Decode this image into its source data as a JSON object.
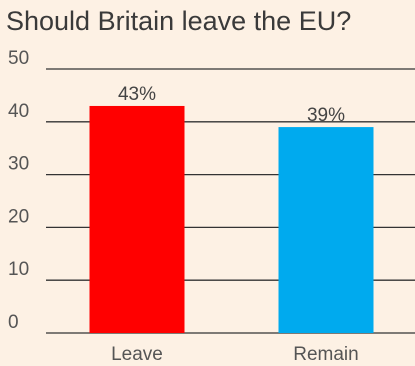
{
  "chart_data": {
    "type": "bar",
    "title": "Should Britain leave the EU?",
    "categories": [
      "Leave",
      "Remain"
    ],
    "values": [
      43,
      39
    ],
    "data_labels": [
      "43%",
      "39%"
    ],
    "colors": [
      "#ff0000",
      "#00aaee"
    ],
    "ylim": [
      0,
      50
    ],
    "yticks": [
      0,
      10,
      20,
      30,
      40,
      50
    ],
    "grid": true,
    "xlabel": "",
    "ylabel": ""
  }
}
